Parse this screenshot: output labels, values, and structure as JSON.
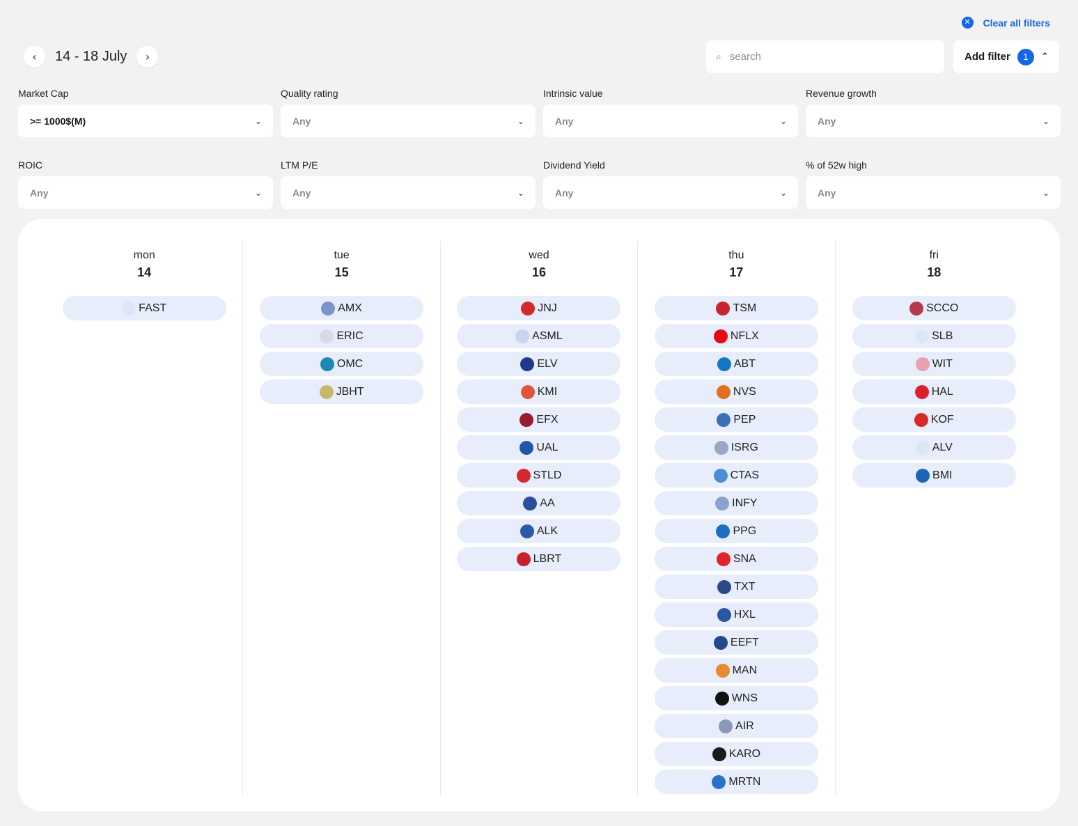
{
  "header": {
    "clear_filters_label": "Clear all filters",
    "week_label": "14 - 18 July",
    "prev_icon": "chevron-left-icon",
    "next_icon": "chevron-right-icon",
    "search_placeholder": "search",
    "add_filter_label": "Add filter",
    "add_filter_count": "1"
  },
  "filters": [
    {
      "label": "Market Cap",
      "value": ">= 1000$(M)",
      "active": true
    },
    {
      "label": "Quality rating",
      "value": "Any",
      "active": false
    },
    {
      "label": "Intrinsic value",
      "value": "Any",
      "active": false
    },
    {
      "label": "Revenue growth",
      "value": "Any",
      "active": false
    },
    {
      "label": "ROIC",
      "value": "Any",
      "active": false
    },
    {
      "label": "LTM P/E",
      "value": "Any",
      "active": false
    },
    {
      "label": "Dividend Yield",
      "value": "Any",
      "active": false
    },
    {
      "label": "% of 52w high",
      "value": "Any",
      "active": false
    }
  ],
  "days": [
    {
      "name": "mon",
      "num": "14",
      "tickers": [
        {
          "symbol": "FAST",
          "color": "#dde6f8"
        }
      ]
    },
    {
      "name": "tue",
      "num": "15",
      "tickers": [
        {
          "symbol": "AMX",
          "color": "#7a96c8"
        },
        {
          "symbol": "ERIC",
          "color": "#d6dbe4"
        },
        {
          "symbol": "OMC",
          "color": "#1a8bb0"
        },
        {
          "symbol": "JBHT",
          "color": "#c9b86a"
        }
      ]
    },
    {
      "name": "wed",
      "num": "16",
      "tickers": [
        {
          "symbol": "JNJ",
          "color": "#d42a2a"
        },
        {
          "symbol": "ASML",
          "color": "#c8d4f2"
        },
        {
          "symbol": "ELV",
          "color": "#1d3a8c"
        },
        {
          "symbol": "KMI",
          "color": "#e0563a"
        },
        {
          "symbol": "EFX",
          "color": "#9b1c2e"
        },
        {
          "symbol": "UAL",
          "color": "#1f58a8"
        },
        {
          "symbol": "STLD",
          "color": "#d9262e"
        },
        {
          "symbol": "AA",
          "color": "#2a4f9c"
        },
        {
          "symbol": "ALK",
          "color": "#2a5aa8"
        },
        {
          "symbol": "LBRT",
          "color": "#c8202c"
        }
      ]
    },
    {
      "name": "thu",
      "num": "17",
      "tickers": [
        {
          "symbol": "TSM",
          "color": "#c8242c"
        },
        {
          "symbol": "NFLX",
          "color": "#e50914"
        },
        {
          "symbol": "ABT",
          "color": "#1476c6"
        },
        {
          "symbol": "NVS",
          "color": "#e2701e"
        },
        {
          "symbol": "PEP",
          "color": "#3b6fb6"
        },
        {
          "symbol": "ISRG",
          "color": "#9aa6c2"
        },
        {
          "symbol": "CTAS",
          "color": "#4a8fd6"
        },
        {
          "symbol": "INFY",
          "color": "#8aa2cc"
        },
        {
          "symbol": "PPG",
          "color": "#1a6fc2"
        },
        {
          "symbol": "SNA",
          "color": "#e2232a"
        },
        {
          "symbol": "TXT",
          "color": "#2e4a86"
        },
        {
          "symbol": "HXL",
          "color": "#2b56a0"
        },
        {
          "symbol": "EEFT",
          "color": "#24498c"
        },
        {
          "symbol": "MAN",
          "color": "#e68a2e"
        },
        {
          "symbol": "WNS",
          "color": "#111111"
        },
        {
          "symbol": "AIR",
          "color": "#8a9ab4"
        },
        {
          "symbol": "KARO",
          "color": "#1b1b1b"
        },
        {
          "symbol": "MRTN",
          "color": "#2a72c8"
        }
      ]
    },
    {
      "name": "fri",
      "num": "18",
      "tickers": [
        {
          "symbol": "SCCO",
          "color": "#b23a4a"
        },
        {
          "symbol": "SLB",
          "color": "#dde6f8"
        },
        {
          "symbol": "WIT",
          "color": "#e8a0b0"
        },
        {
          "symbol": "HAL",
          "color": "#d9222a"
        },
        {
          "symbol": "KOF",
          "color": "#d62a2a"
        },
        {
          "symbol": "ALV",
          "color": "#dde6f8"
        },
        {
          "symbol": "BMI",
          "color": "#1e64b4"
        }
      ]
    }
  ]
}
